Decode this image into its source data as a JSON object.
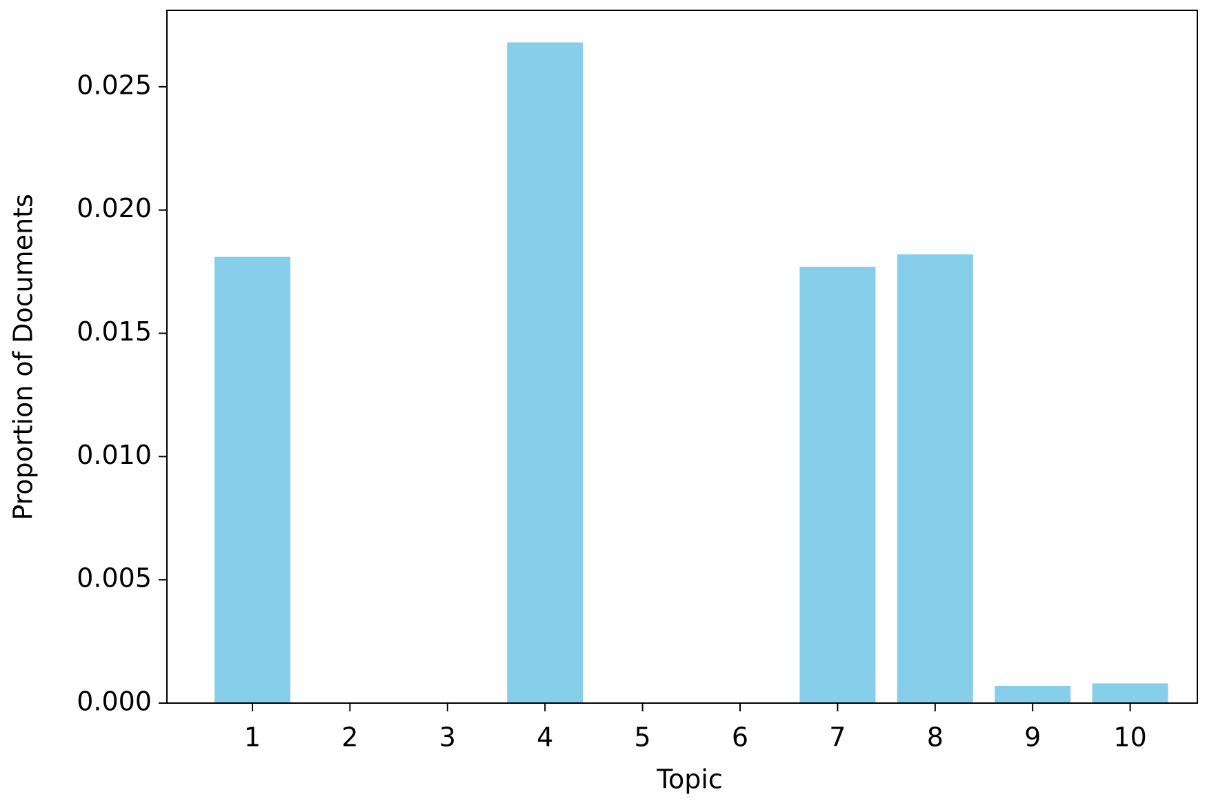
{
  "chart_data": {
    "type": "bar",
    "x_label": "Topic",
    "y_label": "Proportion of Documents",
    "categories": [
      "1",
      "2",
      "3",
      "4",
      "5",
      "6",
      "7",
      "8",
      "9",
      "10"
    ],
    "values": [
      0.0181,
      0,
      0,
      0.0268,
      0,
      0,
      0.0177,
      0.0182,
      0.0007,
      0.0008
    ],
    "color": "#87ceeb",
    "ylim": [
      0,
      0.0281
    ],
    "yticks": [
      {
        "value": 0,
        "label": "0.000"
      },
      {
        "value": 0.005,
        "label": "0.005"
      },
      {
        "value": 0.01,
        "label": "0.010"
      },
      {
        "value": 0.015,
        "label": "0.015"
      },
      {
        "value": 0.02,
        "label": "0.020"
      },
      {
        "value": 0.025,
        "label": "0.025"
      }
    ],
    "grid": false
  }
}
